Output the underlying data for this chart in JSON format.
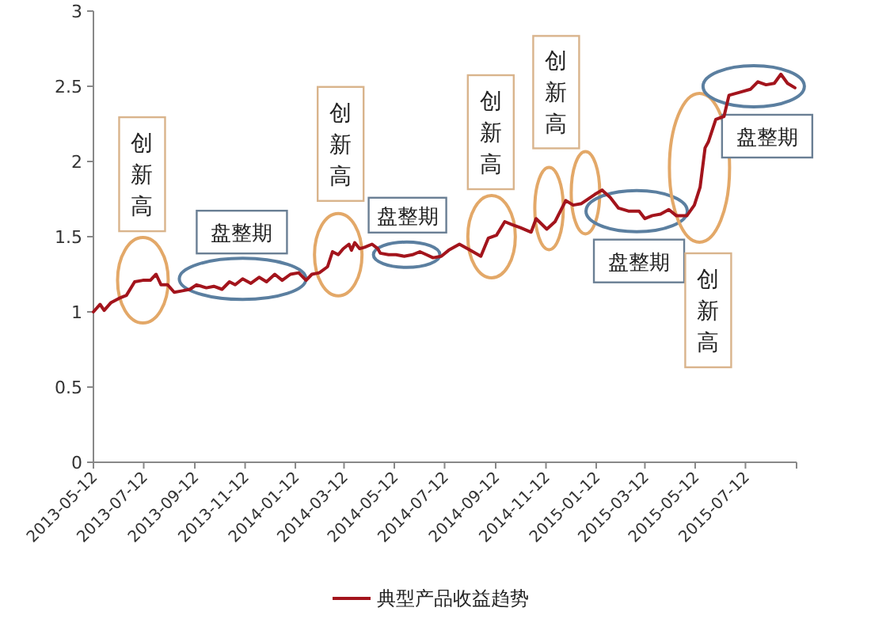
{
  "chart_data": {
    "type": "line",
    "legend": "bottom",
    "marker": "none",
    "line_style": "solid",
    "grid": false,
    "xlim": [
      "2013-05-12",
      "2015-09-12"
    ],
    "xticks": [
      "2013-05-12",
      "2013-07-12",
      "2013-09-12",
      "2013-11-12",
      "2014-01-12",
      "2014-03-12",
      "2014-05-12",
      "2014-07-12",
      "2014-09-12",
      "2014-11-12",
      "2015-01-12",
      "2015-03-12",
      "2015-05-12",
      "2015-07-12",
      {
        "value": "2015-09-12",
        "label": null
      }
    ],
    "ylim": [
      0,
      3
    ],
    "yticks": [
      0,
      0.5,
      1,
      1.5,
      2,
      2.5,
      3
    ],
    "annotations": [
      {
        "text": "创新高",
        "x": "2013-07-11",
        "y": 1.21
      },
      {
        "text": "盘整期",
        "x": "2013-11-09",
        "y": 1.22
      },
      {
        "text": "创新高",
        "x": "2014-03-05",
        "y": 1.38
      },
      {
        "text": "盘整期",
        "x": "2014-05-27",
        "y": 1.38
      },
      {
        "text": "创新高",
        "x": "2014-09-07",
        "y": 1.5
      },
      "创新高",
      {
        "text": "盘整期",
        "x": "2015-03-02",
        "y": 1.67
      },
      "创新高",
      {
        "text": "盘整期",
        "x": "2015-07-22",
        "y": 2.5
      }
    ],
    "series": [
      {
        "name": "典型产品收益趋势",
        "color": "#a3141c",
        "x": [
          "2013-05-12",
          "2013-05-20",
          "2013-05-25",
          "2013-06-02",
          "2013-06-12",
          "2013-06-21",
          "2013-07-01",
          "2013-07-11",
          "2013-07-20",
          "2013-07-27",
          "2013-08-02",
          "2013-08-10",
          "2013-08-18",
          "2013-08-28",
          "2013-09-06",
          "2013-09-14",
          "2013-09-26",
          "2013-10-05",
          "2013-10-15",
          "2013-10-24",
          "2013-10-31",
          "2013-11-09",
          "2013-11-19",
          "2013-11-29",
          "2013-12-08",
          "2013-12-18",
          "2013-12-27",
          "2014-01-06",
          "2014-01-16",
          "2014-01-25",
          "2014-02-01",
          "2014-02-10",
          "2014-02-20",
          "2014-02-26",
          "2014-03-05",
          "2014-03-11",
          "2014-03-18",
          "2014-03-21",
          "2014-03-25",
          "2014-03-31",
          "2014-04-06",
          "2014-04-15",
          "2014-04-22",
          "2014-04-25",
          "2014-05-05",
          "2014-05-14",
          "2014-05-24",
          "2014-06-03",
          "2014-06-12",
          "2014-06-20",
          "2014-06-28",
          "2014-07-08",
          "2014-07-17",
          "2014-07-30",
          "2014-08-12",
          "2014-08-25",
          "2014-09-03",
          "2014-09-13",
          "2014-09-23",
          "2014-10-02",
          "2014-10-12",
          "2014-10-25",
          "2014-10-31",
          "2014-11-13",
          "2014-11-23",
          "2014-12-06",
          "2014-12-15",
          "2014-12-25",
          "2015-01-10",
          "2015-01-19",
          "2015-01-29",
          "2015-02-08",
          "2015-02-20",
          "2015-03-05",
          "2015-03-12",
          "2015-03-21",
          "2015-03-31",
          "2015-04-10",
          "2015-04-19",
          "2015-05-02",
          "2015-05-11",
          "2015-05-18",
          "2015-05-24",
          "2015-05-28",
          "2015-06-06",
          "2015-06-16",
          "2015-06-22",
          "2015-07-05",
          "2015-07-18",
          "2015-07-27",
          "2015-08-06",
          "2015-08-16",
          "2015-08-24",
          "2015-09-01",
          "2015-09-10"
        ],
        "values": [
          1.0,
          1.05,
          1.01,
          1.06,
          1.09,
          1.11,
          1.2,
          1.21,
          1.21,
          1.25,
          1.18,
          1.18,
          1.13,
          1.14,
          1.15,
          1.18,
          1.16,
          1.17,
          1.15,
          1.2,
          1.18,
          1.22,
          1.19,
          1.23,
          1.2,
          1.25,
          1.21,
          1.25,
          1.26,
          1.21,
          1.25,
          1.26,
          1.3,
          1.4,
          1.38,
          1.42,
          1.45,
          1.41,
          1.46,
          1.42,
          1.43,
          1.45,
          1.42,
          1.39,
          1.38,
          1.38,
          1.37,
          1.38,
          1.4,
          1.38,
          1.36,
          1.37,
          1.41,
          1.45,
          1.41,
          1.37,
          1.49,
          1.51,
          1.6,
          1.58,
          1.56,
          1.53,
          1.62,
          1.55,
          1.6,
          1.74,
          1.71,
          1.72,
          1.78,
          1.81,
          1.76,
          1.69,
          1.67,
          1.67,
          1.62,
          1.64,
          1.65,
          1.68,
          1.64,
          1.64,
          1.71,
          1.83,
          2.09,
          2.13,
          2.28,
          2.3,
          2.44,
          2.46,
          2.48,
          2.53,
          2.51,
          2.52,
          2.58,
          2.52,
          2.49
        ]
      }
    ]
  }
}
